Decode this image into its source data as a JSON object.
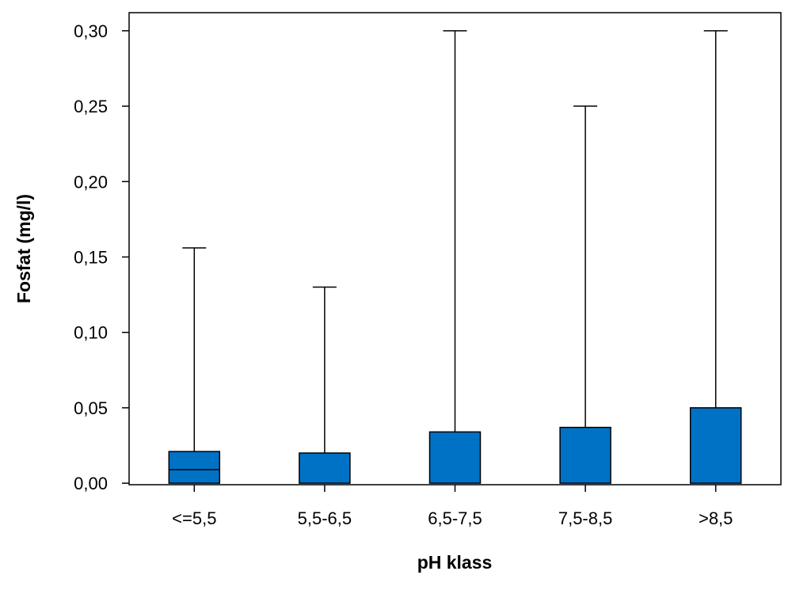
{
  "chart_data": {
    "type": "box",
    "title": "",
    "xlabel": "pH klass",
    "ylabel": "Fosfat (mg/l)",
    "categories": [
      "<=5,5",
      "5,5-6,5",
      "6,5-7,5",
      "7,5-8,5",
      ">8,5"
    ],
    "boxes": [
      {
        "category": "<=5,5",
        "min": 0.0,
        "q1": 0.0,
        "median": 0.009,
        "q3": 0.021,
        "max": 0.156
      },
      {
        "category": "5,5-6,5",
        "min": 0.0,
        "q1": 0.0,
        "median": 0.0,
        "q3": 0.02,
        "max": 0.13
      },
      {
        "category": "6,5-7,5",
        "min": 0.0,
        "q1": 0.0,
        "median": 0.0,
        "q3": 0.034,
        "max": 0.3
      },
      {
        "category": "7,5-8,5",
        "min": 0.0,
        "q1": 0.0,
        "median": 0.0,
        "q3": 0.037,
        "max": 0.25
      },
      {
        "category": ">8,5",
        "min": 0.0,
        "q1": 0.0,
        "median": 0.0,
        "q3": 0.05,
        "max": 0.3
      }
    ],
    "ylim": [
      -0.001,
      0.312
    ],
    "yticks": [
      0.0,
      0.05,
      0.1,
      0.15,
      0.2,
      0.25,
      0.3
    ],
    "ytick_labels": [
      "0,00",
      "0,05",
      "0,10",
      "0,15",
      "0,20",
      "0,25",
      "0,30"
    ],
    "box_color": "#0072c6",
    "grid": false,
    "legend": "none"
  }
}
